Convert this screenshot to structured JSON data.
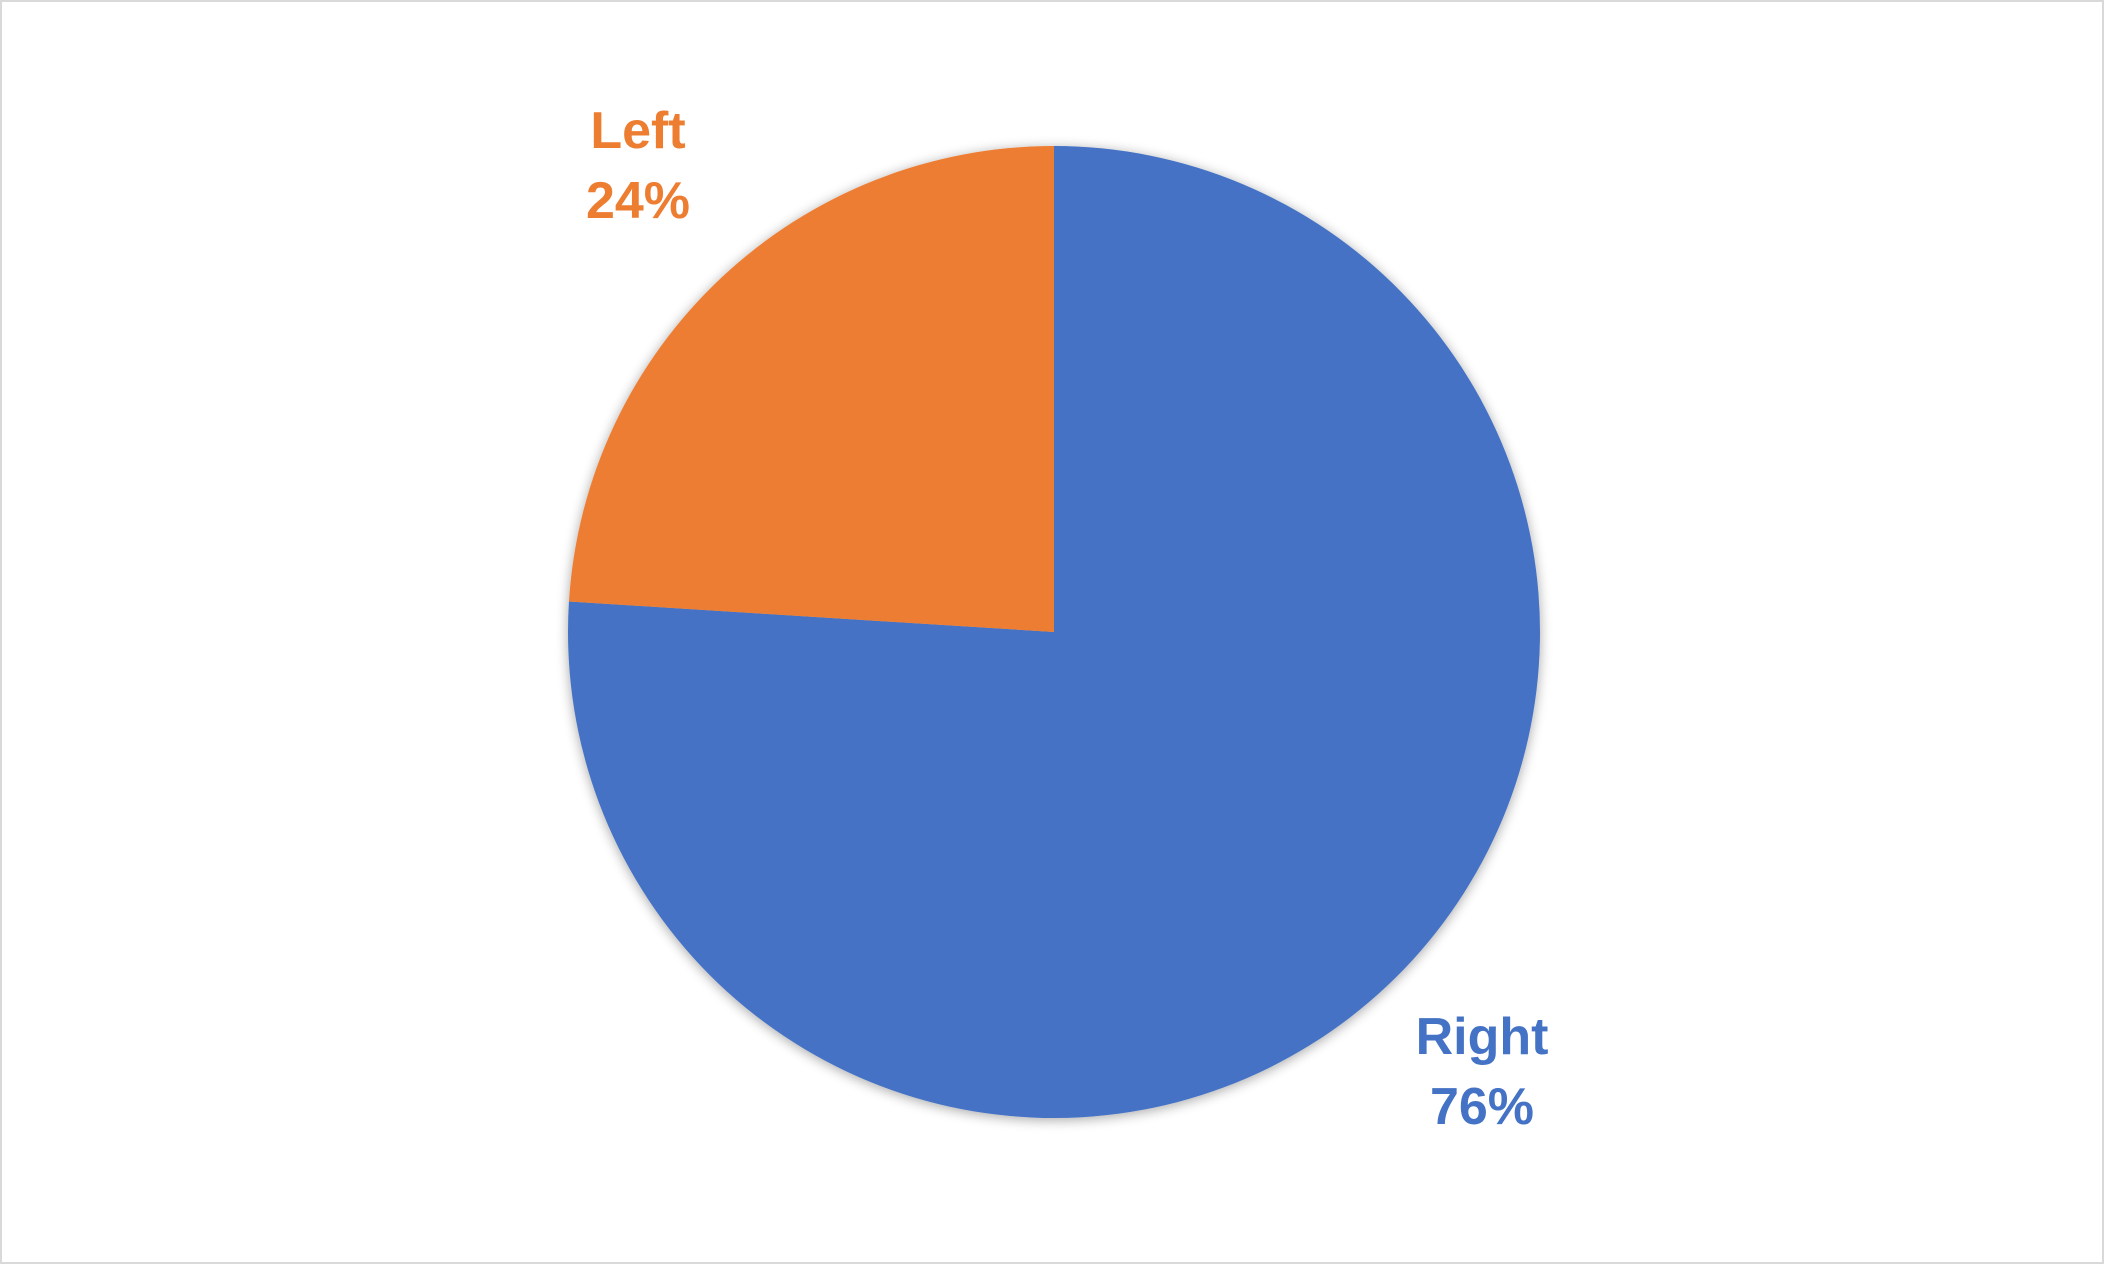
{
  "chart_data": {
    "type": "pie",
    "slices": [
      {
        "label": "Right",
        "value": 76,
        "percent_label": "76%",
        "color": "#4472C4"
      },
      {
        "label": "Left",
        "value": 24,
        "percent_label": "24%",
        "color": "#ED7D31"
      }
    ],
    "start_angle_deg": 0,
    "direction": "clockwise",
    "legend": "none",
    "data_labels": "outside"
  }
}
